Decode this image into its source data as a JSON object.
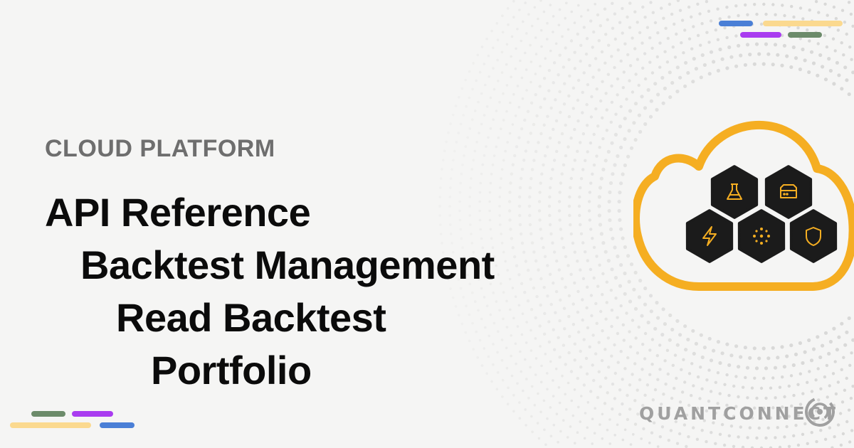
{
  "eyebrow": "CLOUD PLATFORM",
  "breadcrumb": [
    "API Reference",
    "Backtest Management",
    "Read Backtest",
    "Portfolio"
  ],
  "brand": {
    "name": "QUANTCONNECT"
  },
  "colors": {
    "background": "#f5f5f4",
    "cloud_outline": "#f5ae22",
    "hex_fill": "#1b1b1b",
    "icon_accent": "#f5ae22",
    "dash_blue": "#4a7fd6",
    "dash_yellow": "#fbd98f",
    "dash_purple": "#a93cf0",
    "dash_green": "#6c8b6a"
  },
  "cloud_icons": [
    "flask-icon",
    "server-icon",
    "lightning-icon",
    "dots-icon",
    "shield-icon"
  ]
}
